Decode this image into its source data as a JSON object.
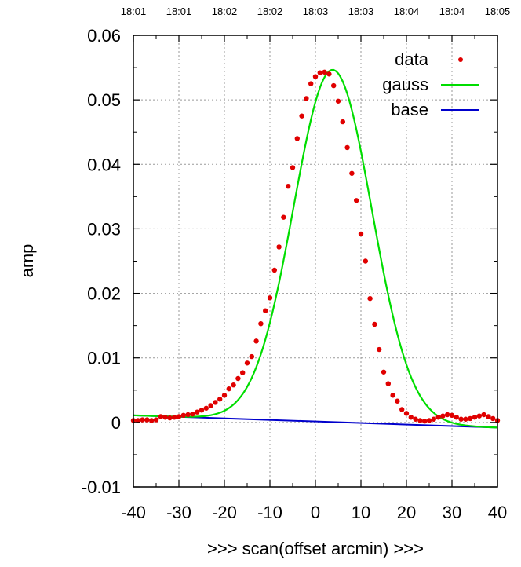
{
  "chart_data": {
    "type": "scatter",
    "xlabel": ">>> scan(offset arcmin) >>>",
    "ylabel": "amp",
    "xlim": [
      -40,
      40
    ],
    "ylim": [
      -0.01,
      0.06
    ],
    "x_ticks": [
      "-40",
      "-30",
      "-20",
      "-10",
      "0",
      "10",
      "20",
      "30",
      "40"
    ],
    "y_ticks": [
      "-0.01",
      "0",
      "0.01",
      "0.02",
      "0.03",
      "0.04",
      "0.05",
      "0.06"
    ],
    "top_ticks": [
      "18:01",
      "18:01",
      "18:02",
      "18:02",
      "18:03",
      "18:03",
      "18:04",
      "18:04",
      "18:05"
    ],
    "grid": true,
    "legend_position": "top-right",
    "colors": {
      "data": "#e00000",
      "gauss": "#00dd00",
      "base": "#0000cc"
    },
    "series": [
      {
        "name": "data",
        "style": "points",
        "points": [
          [
            -40,
            0.0003
          ],
          [
            -39,
            0.0003
          ],
          [
            -38,
            0.0004
          ],
          [
            -37,
            0.0004
          ],
          [
            -36,
            0.0003
          ],
          [
            -35,
            0.0004
          ],
          [
            -34,
            0.0009
          ],
          [
            -33,
            0.0008
          ],
          [
            -32,
            0.0007
          ],
          [
            -31,
            0.0008
          ],
          [
            -30,
            0.0009
          ],
          [
            -29,
            0.0011
          ],
          [
            -28,
            0.0012
          ],
          [
            -27,
            0.0013
          ],
          [
            -26,
            0.0016
          ],
          [
            -25,
            0.0019
          ],
          [
            -24,
            0.0022
          ],
          [
            -23,
            0.0026
          ],
          [
            -22,
            0.0031
          ],
          [
            -21,
            0.0036
          ],
          [
            -20,
            0.0042
          ],
          [
            -19,
            0.0052
          ],
          [
            -18,
            0.0058
          ],
          [
            -17,
            0.0068
          ],
          [
            -16,
            0.0077
          ],
          [
            -15,
            0.0092
          ],
          [
            -14,
            0.0102
          ],
          [
            -13,
            0.0126
          ],
          [
            -12,
            0.0153
          ],
          [
            -11,
            0.0173
          ],
          [
            -10,
            0.0193
          ],
          [
            -9,
            0.0236
          ],
          [
            -8,
            0.0272
          ],
          [
            -7,
            0.0318
          ],
          [
            -6,
            0.0366
          ],
          [
            -5,
            0.0395
          ],
          [
            -4,
            0.044
          ],
          [
            -3,
            0.0475
          ],
          [
            -2,
            0.0502
          ],
          [
            -1,
            0.0525
          ],
          [
            0,
            0.0536
          ],
          [
            1,
            0.0542
          ],
          [
            2,
            0.0543
          ],
          [
            3,
            0.054
          ],
          [
            4,
            0.0522
          ],
          [
            5,
            0.0498
          ],
          [
            6,
            0.0466
          ],
          [
            7,
            0.0426
          ],
          [
            8,
            0.0386
          ],
          [
            9,
            0.0344
          ],
          [
            10,
            0.0292
          ],
          [
            11,
            0.025
          ],
          [
            12,
            0.0192
          ],
          [
            13,
            0.0152
          ],
          [
            14,
            0.0113
          ],
          [
            15,
            0.0078
          ],
          [
            16,
            0.006
          ],
          [
            17,
            0.0042
          ],
          [
            18,
            0.0033
          ],
          [
            19,
            0.002
          ],
          [
            20,
            0.0014
          ],
          [
            21,
            0.0008
          ],
          [
            22,
            0.0005
          ],
          [
            23,
            0.0003
          ],
          [
            24,
            0.0002
          ],
          [
            25,
            0.0003
          ],
          [
            26,
            0.0005
          ],
          [
            27,
            0.0008
          ],
          [
            28,
            0.001
          ],
          [
            29,
            0.0012
          ],
          [
            30,
            0.0011
          ],
          [
            31,
            0.0008
          ],
          [
            32,
            0.0005
          ],
          [
            33,
            0.0005
          ],
          [
            34,
            0.0006
          ],
          [
            35,
            0.0008
          ],
          [
            36,
            0.001
          ],
          [
            37,
            0.0012
          ],
          [
            38,
            0.0009
          ],
          [
            39,
            0.0006
          ],
          [
            40,
            0.0003
          ]
        ]
      },
      {
        "name": "gauss",
        "style": "line",
        "model": {
          "type": "gaussian",
          "amplitude": 0.0546,
          "center": 3.8,
          "sigma": 8.6,
          "baseline": "base"
        }
      },
      {
        "name": "base",
        "style": "line",
        "points": [
          [
            -40,
            0.0011
          ],
          [
            40,
            -0.0008
          ]
        ]
      }
    ]
  }
}
